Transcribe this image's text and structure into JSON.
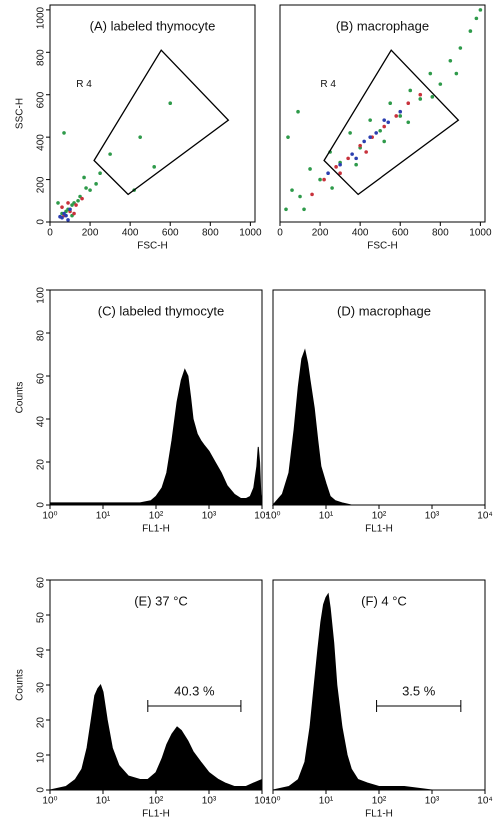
{
  "chart_data": [
    {
      "type": "scatter",
      "title": "(A) labeled thymocyte",
      "xlabel": "FSC-H",
      "ylabel": "SSC-H",
      "xlim": [
        0,
        1023
      ],
      "ylim": [
        0,
        1023
      ],
      "xticks": [
        0,
        200,
        400,
        600,
        800,
        1000
      ],
      "yticks": [
        0,
        200,
        400,
        600,
        800,
        1000
      ],
      "series": [
        {
          "color": "#2e9a4a",
          "x": [
            60,
            90,
            120,
            150,
            80,
            110,
            180,
            200,
            140,
            250,
            300,
            420,
            450,
            520,
            110,
            70,
            40,
            170,
            230,
            600
          ],
          "y": [
            40,
            60,
            90,
            120,
            50,
            80,
            160,
            150,
            100,
            230,
            320,
            150,
            400,
            260,
            30,
            420,
            90,
            210,
            180,
            560
          ]
        },
        {
          "color": "#c8323c",
          "x": [
            70,
            100,
            130,
            90,
            160,
            120,
            60
          ],
          "y": [
            30,
            50,
            80,
            90,
            110,
            40,
            70
          ]
        },
        {
          "color": "#2c3fb0",
          "x": [
            60,
            80,
            70,
            90,
            50,
            100
          ],
          "y": [
            20,
            30,
            40,
            10,
            25,
            60
          ]
        }
      ],
      "gate": {
        "x": [
          220,
          555,
          890,
          390
        ],
        "y": [
          290,
          810,
          480,
          130
        ]
      },
      "annotations": [
        {
          "text": "R 4",
          "x": 170,
          "y": 650
        }
      ]
    },
    {
      "type": "scatter",
      "title": "(B) macrophage",
      "xlabel": "FSC-H",
      "xlim": [
        0,
        1023
      ],
      "ylim": [
        0,
        1023
      ],
      "xticks": [
        0,
        200,
        400,
        600,
        800,
        1000
      ],
      "series": [
        {
          "color": "#2e9a4a",
          "x": [
            30,
            60,
            100,
            150,
            200,
            250,
            300,
            350,
            400,
            450,
            500,
            550,
            600,
            650,
            700,
            750,
            800,
            850,
            900,
            950,
            980,
            1000,
            120,
            260,
            380,
            520,
            640,
            760,
            880,
            40,
            90
          ],
          "y": [
            60,
            150,
            120,
            250,
            200,
            330,
            280,
            420,
            350,
            480,
            430,
            560,
            500,
            620,
            580,
            700,
            650,
            760,
            820,
            900,
            960,
            1000,
            60,
            160,
            270,
            380,
            470,
            590,
            700,
            400,
            520
          ]
        },
        {
          "color": "#c8323c",
          "x": [
            220,
            280,
            340,
            400,
            460,
            520,
            580,
            640,
            700,
            160,
            300,
            430
          ],
          "y": [
            200,
            260,
            300,
            360,
            400,
            450,
            500,
            560,
            600,
            130,
            230,
            330
          ]
        },
        {
          "color": "#2c3fb0",
          "x": [
            240,
            300,
            360,
            420,
            480,
            540,
            600,
            380,
            450,
            520
          ],
          "y": [
            230,
            270,
            320,
            380,
            420,
            470,
            520,
            300,
            400,
            480
          ]
        }
      ],
      "gate": {
        "x": [
          220,
          555,
          890,
          390
        ],
        "y": [
          290,
          810,
          480,
          130
        ]
      },
      "annotations": [
        {
          "text": "R 4",
          "x": 240,
          "y": 650
        }
      ]
    },
    {
      "type": "histogram",
      "title": "(C) labeled thymocyte",
      "xlabel": "FL1-H",
      "ylabel": "Counts",
      "xlog": true,
      "color": "#000000",
      "xlim": [
        1,
        10000
      ],
      "ylim": [
        0,
        100
      ],
      "xticks": [
        {
          "value": 1,
          "label": "10⁰"
        },
        {
          "value": 10,
          "label": "10¹"
        },
        {
          "value": 100,
          "label": "10²"
        },
        {
          "value": 1000,
          "label": "10³"
        },
        {
          "value": 10000,
          "label": "10⁴"
        }
      ],
      "yticks": [
        0,
        20,
        40,
        60,
        80,
        100
      ],
      "x": [
        1,
        2,
        5,
        10,
        20,
        50,
        80,
        100,
        130,
        160,
        200,
        250,
        300,
        350,
        400,
        450,
        500,
        600,
        700,
        800,
        1000,
        1300,
        1700,
        2200,
        3000,
        4000,
        5000,
        6000,
        7000,
        8000,
        8500,
        9000,
        9500,
        10000
      ],
      "values": [
        1,
        1,
        1,
        1,
        1,
        1,
        2,
        4,
        8,
        15,
        30,
        48,
        58,
        63,
        60,
        50,
        40,
        33,
        30,
        28,
        25,
        20,
        15,
        9,
        5,
        3,
        3,
        4,
        8,
        18,
        27,
        20,
        5,
        0
      ]
    },
    {
      "type": "histogram",
      "title": "(D) macrophage",
      "xlabel": "FL1-H",
      "xlog": true,
      "color": "#000000",
      "xlim": [
        1,
        10000
      ],
      "ylim": [
        0,
        100
      ],
      "xticks": [
        {
          "value": 1,
          "label": "10⁰"
        },
        {
          "value": 10,
          "label": "10¹"
        },
        {
          "value": 100,
          "label": "10²"
        },
        {
          "value": 1000,
          "label": "10³"
        },
        {
          "value": 10000,
          "label": "10⁴"
        }
      ],
      "x": [
        1,
        1.5,
        2,
        2.5,
        3,
        3.5,
        4,
        4.5,
        5,
        6,
        7,
        8,
        10,
        12,
        15,
        20,
        30,
        50,
        100,
        1000,
        10000
      ],
      "values": [
        0,
        5,
        15,
        35,
        55,
        68,
        72,
        66,
        58,
        45,
        30,
        18,
        10,
        4,
        2,
        1,
        0,
        0,
        0,
        0,
        0
      ]
    },
    {
      "type": "histogram",
      "title": "(E) 37 °C",
      "xlabel": "FL1-H",
      "ylabel": "Counts",
      "xlog": true,
      "color": "#000000",
      "xlim": [
        1,
        10000
      ],
      "ylim": [
        0,
        60
      ],
      "xticks": [
        {
          "value": 1,
          "label": "10⁰"
        },
        {
          "value": 10,
          "label": "10¹"
        },
        {
          "value": 100,
          "label": "10²"
        },
        {
          "value": 1000,
          "label": "10³"
        },
        {
          "value": 10000,
          "label": "10⁴"
        }
      ],
      "yticks": [
        0,
        10,
        20,
        30,
        40,
        50,
        60
      ],
      "x": [
        1,
        2,
        3,
        4,
        5,
        6,
        7,
        8,
        9,
        10,
        12,
        15,
        20,
        30,
        50,
        70,
        100,
        130,
        160,
        200,
        250,
        300,
        400,
        500,
        700,
        1000,
        1500,
        2000,
        3000,
        5000,
        7000,
        10000
      ],
      "values": [
        0,
        1,
        3,
        6,
        12,
        20,
        27,
        29,
        30,
        28,
        20,
        12,
        7,
        4,
        3,
        3,
        5,
        9,
        13,
        16,
        18,
        17,
        14,
        11,
        8,
        5,
        3,
        2,
        1,
        1,
        2,
        3
      ],
      "bracket": {
        "label": "40.3 %",
        "range": [
          70,
          4000
        ]
      }
    },
    {
      "type": "histogram",
      "title": "(F) 4 °C",
      "xlabel": "FL1-H",
      "xlog": true,
      "color": "#000000",
      "xlim": [
        1,
        10000
      ],
      "ylim": [
        0,
        60
      ],
      "xticks": [
        {
          "value": 1,
          "label": "10⁰"
        },
        {
          "value": 10,
          "label": "10¹"
        },
        {
          "value": 100,
          "label": "10²"
        },
        {
          "value": 1000,
          "label": "10³"
        },
        {
          "value": 10000,
          "label": "10⁴"
        }
      ],
      "x": [
        1,
        2,
        3,
        4,
        5,
        6,
        7,
        8,
        9,
        10,
        11,
        12,
        14,
        16,
        20,
        25,
        30,
        40,
        60,
        100,
        300,
        1000,
        3000,
        10000
      ],
      "values": [
        0,
        1,
        3,
        8,
        18,
        30,
        40,
        48,
        53,
        55,
        56,
        52,
        42,
        30,
        18,
        10,
        6,
        3,
        2,
        1,
        1,
        0,
        0,
        0
      ],
      "bracket": {
        "label": "3.5 %",
        "range": [
          90,
          3500
        ]
      }
    }
  ]
}
